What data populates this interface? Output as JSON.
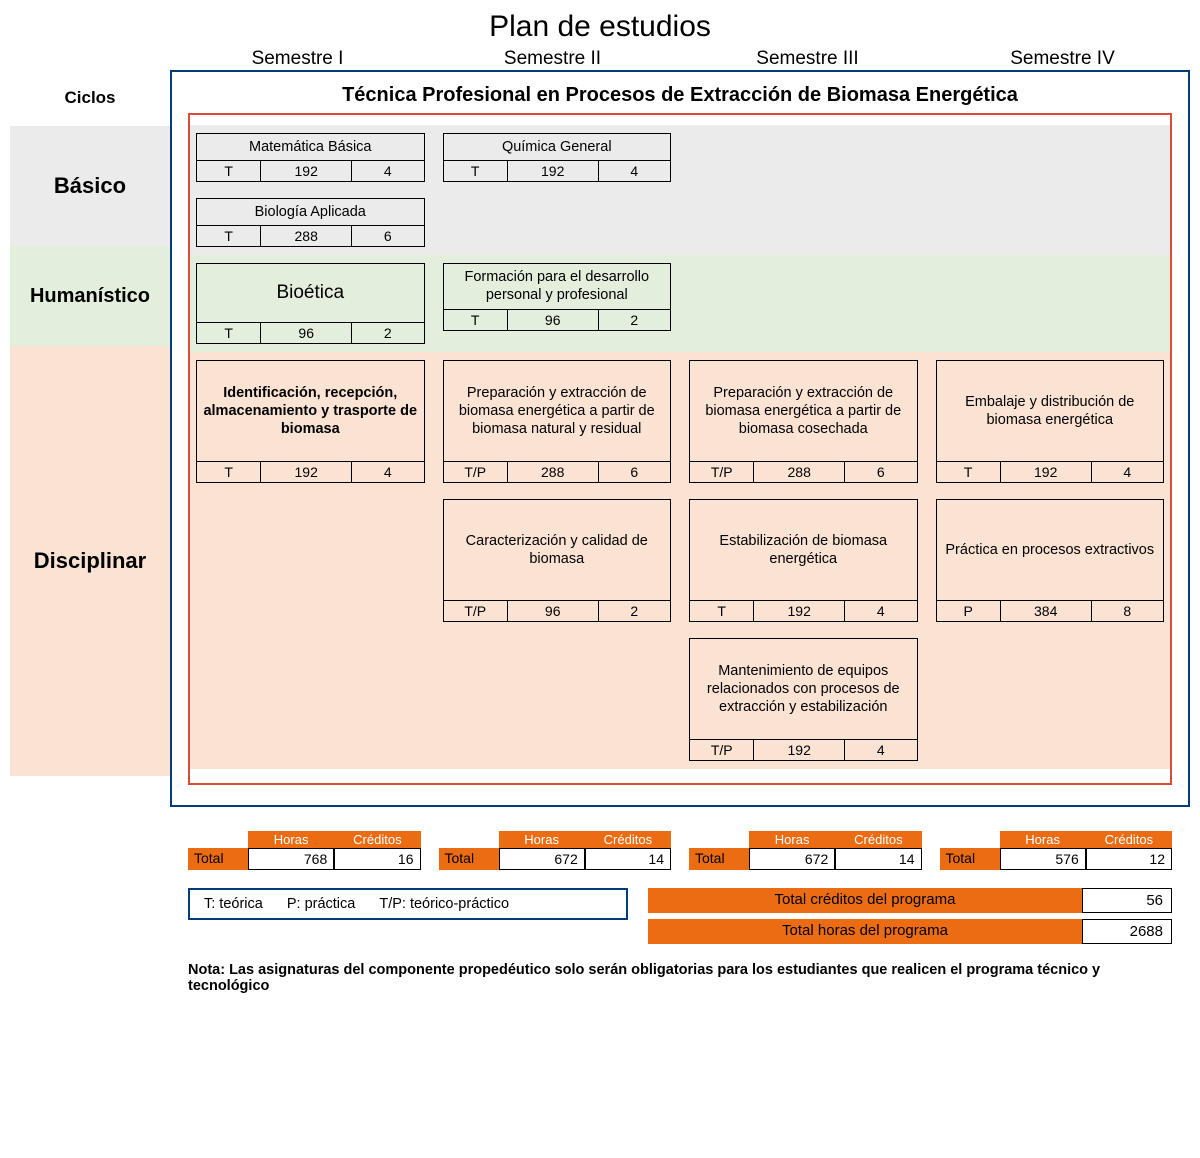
{
  "title": "Plan de estudios",
  "cycles_header": "Ciclos",
  "semesters": [
    "Semestre I",
    "Semestre II",
    "Semestre III",
    "Semestre IV"
  ],
  "program": "Técnica Profesional en Procesos de Extracción de Biomasa Energética",
  "colors": {
    "outer_border": "#003b7a",
    "inner_border": "#d94b3a",
    "basico_bg": "#ebebeb",
    "human_bg": "#e3efdc",
    "disc_bg": "#fbe3d4",
    "accent": "#ec6c13"
  },
  "cycles": [
    {
      "key": "basico",
      "label": "Básico",
      "label_height": 120,
      "label_font": 22,
      "bg": "#ebebeb",
      "rows": [
        [
          {
            "name": "Matemática Básica",
            "type": "T",
            "hours": "192",
            "credits": "4",
            "bold": false,
            "tall": false
          },
          {
            "name": "Química General",
            "type": "T",
            "hours": "192",
            "credits": "4",
            "bold": false,
            "tall": false
          },
          null,
          null
        ],
        [
          {
            "name": "Biología Aplicada",
            "type": "T",
            "hours": "288",
            "credits": "6",
            "bold": false,
            "tall": false
          },
          null,
          null,
          null
        ]
      ]
    },
    {
      "key": "human",
      "label": "Humanístico",
      "label_height": 100,
      "label_font": 20,
      "bg": "#e3efdc",
      "rows": [
        [
          {
            "name": "Bioética",
            "type": "T",
            "hours": "96",
            "credits": "2",
            "bold": false,
            "tall": false,
            "big": true
          },
          {
            "name": "Formación para el desarrollo personal y profesional",
            "type": "T",
            "hours": "96",
            "credits": "2",
            "bold": false,
            "tall": false
          },
          null,
          null
        ]
      ]
    },
    {
      "key": "disc",
      "label": "Disciplinar",
      "label_height": 430,
      "label_font": 22,
      "bg": "#fbe3d4",
      "rows": [
        [
          {
            "name": "Identificación, recepción, almacenamiento y trasporte de biomasa",
            "type": "T",
            "hours": "192",
            "credits": "4",
            "bold": true,
            "tall": true
          },
          {
            "name": "Preparación y extracción de biomasa energética a partir de biomasa natural y residual",
            "type": "T/P",
            "hours": "288",
            "credits": "6",
            "bold": false,
            "tall": true
          },
          {
            "name": "Preparación y extracción de biomasa energética a partir de biomasa cosechada",
            "type": "T/P",
            "hours": "288",
            "credits": "6",
            "bold": false,
            "tall": true
          },
          {
            "name": "Embalaje y distribución de biomasa energética",
            "type": "T",
            "hours": "192",
            "credits": "4",
            "bold": false,
            "tall": true
          }
        ],
        [
          null,
          {
            "name": "Caracterización y calidad de biomasa",
            "type": "T/P",
            "hours": "96",
            "credits": "2",
            "bold": false,
            "tall": true
          },
          {
            "name": "Estabilización de biomasa energética",
            "type": "T",
            "hours": "192",
            "credits": "4",
            "bold": false,
            "tall": true
          },
          {
            "name": "Práctica en procesos extractivos",
            "type": "P",
            "hours": "384",
            "credits": "8",
            "bold": false,
            "tall": true
          }
        ],
        [
          null,
          null,
          {
            "name": "Mantenimiento de equipos relacionados con procesos de extracción y estabilización",
            "type": "T/P",
            "hours": "192",
            "credits": "4",
            "bold": false,
            "tall": true
          },
          null
        ]
      ]
    }
  ],
  "sem_totals_header": {
    "hours": "Horas",
    "credits": "Créditos",
    "total": "Total"
  },
  "sem_totals": [
    {
      "hours": "768",
      "credits": "16"
    },
    {
      "hours": "672",
      "credits": "14"
    },
    {
      "hours": "672",
      "credits": "14"
    },
    {
      "hours": "576",
      "credits": "12"
    }
  ],
  "legend": {
    "t": "T: teórica",
    "p": "P: práctica",
    "tp": "T/P: teórico-práctico"
  },
  "program_totals": [
    {
      "label": "Total créditos del programa",
      "value": "56"
    },
    {
      "label": "Total horas del programa",
      "value": "2688"
    }
  ],
  "note": "Nota: Las asignaturas del componente propedéutico solo serán obligatorias para los estudiantes que realicen el programa técnico y tecnológico"
}
